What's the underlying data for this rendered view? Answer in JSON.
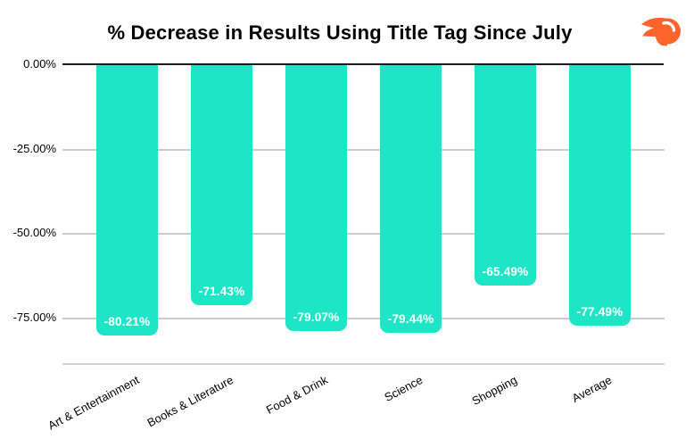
{
  "header": {
    "title": "% Decrease in Results Using Title Tag Since July",
    "logo_icon": "semrush-logo-icon"
  },
  "chart_data": {
    "type": "bar",
    "title": "% Decrease in Results Using Title Tag Since July",
    "categories": [
      "Art & Entertainment",
      "Books & Literature",
      "Food & Drink",
      "Science",
      "Shopping",
      "Average"
    ],
    "values": [
      -80.21,
      -71.43,
      -79.07,
      -79.44,
      -65.49,
      -77.49
    ],
    "bar_labels": [
      "-80.21%",
      "-71.43%",
      "-79.07%",
      "-79.44%",
      "-65.49%",
      "-77.49%"
    ],
    "yticks": {
      "labels": [
        "0.00%",
        "-25.00%",
        "-50.00%",
        "-75.00%"
      ],
      "values": [
        0,
        -25,
        -50,
        -75
      ]
    },
    "xlabel": "",
    "ylabel": "",
    "ylim": [
      0,
      -88.5
    ],
    "grid": true,
    "legend": false,
    "bar_label_position": "inside-bottom",
    "colors": {
      "bar": "#1EE5C6",
      "bar_value_text": "#FFFFFF",
      "zero_line": "#1A1A1A",
      "gridline": "#CCCCCC",
      "title_text": "#000000",
      "logo_orange": "#FF642D"
    }
  }
}
